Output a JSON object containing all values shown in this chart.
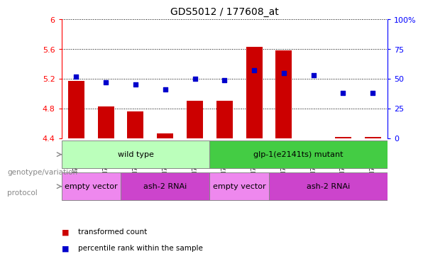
{
  "title": "GDS5012 / 177608_at",
  "samples": [
    "GSM756685",
    "GSM756686",
    "GSM756687",
    "GSM756688",
    "GSM756689",
    "GSM756690",
    "GSM756691",
    "GSM756692",
    "GSM756693",
    "GSM756694",
    "GSM756695"
  ],
  "red_values": [
    5.17,
    4.83,
    4.76,
    4.46,
    4.9,
    4.9,
    5.63,
    5.58,
    4.4,
    4.42,
    4.42
  ],
  "blue_values": [
    52,
    47,
    45,
    41,
    50,
    49,
    57,
    55,
    53,
    38,
    38
  ],
  "ylim_left": [
    4.4,
    6.0
  ],
  "ylim_right": [
    0,
    100
  ],
  "yticks_left": [
    4.4,
    4.8,
    5.2,
    5.6,
    6.0
  ],
  "yticks_right": [
    0,
    25,
    50,
    75,
    100
  ],
  "ytick_labels_left": [
    "4.4",
    "4.8",
    "5.2",
    "5.6",
    "6"
  ],
  "ytick_labels_right": [
    "0",
    "25",
    "50",
    "75",
    "100%"
  ],
  "left_axis_color": "red",
  "right_axis_color": "blue",
  "bar_color": "#cc0000",
  "dot_color": "#0000cc",
  "bar_bottom": 4.4,
  "genotype_groups": [
    {
      "label": "wild type",
      "start": 0,
      "end": 5,
      "color": "#bbffbb"
    },
    {
      "label": "glp-1(e2141ts) mutant",
      "start": 5,
      "end": 11,
      "color": "#44cc44"
    }
  ],
  "protocol_groups": [
    {
      "label": "empty vector",
      "start": 0,
      "end": 2,
      "color": "#ee88ee"
    },
    {
      "label": "ash-2 RNAi",
      "start": 2,
      "end": 5,
      "color": "#cc44cc"
    },
    {
      "label": "empty vector",
      "start": 5,
      "end": 7,
      "color": "#ee88ee"
    },
    {
      "label": "ash-2 RNAi",
      "start": 7,
      "end": 11,
      "color": "#cc44cc"
    }
  ],
  "legend_bar_label": "transformed count",
  "legend_dot_label": "percentile rank within the sample",
  "background_color": "white",
  "grid_color": "black",
  "font_size_tick": 8,
  "font_size_label": 8,
  "font_size_title": 10,
  "label_genotype": "genotype/variation",
  "label_protocol": "protocol"
}
